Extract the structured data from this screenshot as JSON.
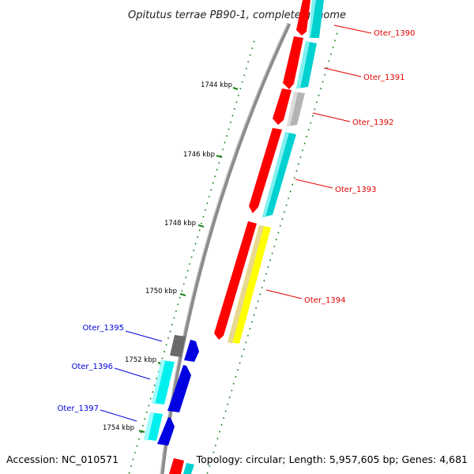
{
  "title": "Opitutus terrae PB90-1, complete genome",
  "footer": {
    "accession": "Accession: NC_010571",
    "summary": "Topology: circular; Length: 5,957,605 bp; Genes: 4,681"
  },
  "colors": {
    "backbone": "#8c8c8c",
    "tick": "#1a7f1a",
    "forward_label": "#e00000",
    "reverse_label": "#0000dd",
    "red": "#ff0000",
    "cyan": "#00d0d0",
    "grey": "#b4b4b4",
    "dark_grey": "#6a6a6a",
    "yellow": "#ffff00",
    "khaki": "#e8d890",
    "blue": "#0000e0",
    "light_cyan": "#00f0f0"
  },
  "ticks": [
    {
      "label": "1744 kbp"
    },
    {
      "label": "1746 kbp"
    },
    {
      "label": "1748 kbp"
    },
    {
      "label": "1750 kbp"
    },
    {
      "label": "1752 kbp"
    },
    {
      "label": "1754 kbp"
    }
  ],
  "gene_labels": [
    {
      "text": "Oter_1390",
      "strand": "forward"
    },
    {
      "text": "Oter_1391",
      "strand": "forward"
    },
    {
      "text": "Oter_1392",
      "strand": "forward"
    },
    {
      "text": "Oter_1393",
      "strand": "forward"
    },
    {
      "text": "Oter_1394",
      "strand": "forward"
    },
    {
      "text": "Oter_1395",
      "strand": "reverse"
    },
    {
      "text": "Oter_1396",
      "strand": "reverse"
    },
    {
      "text": "Oter_1397",
      "strand": "reverse"
    }
  ]
}
